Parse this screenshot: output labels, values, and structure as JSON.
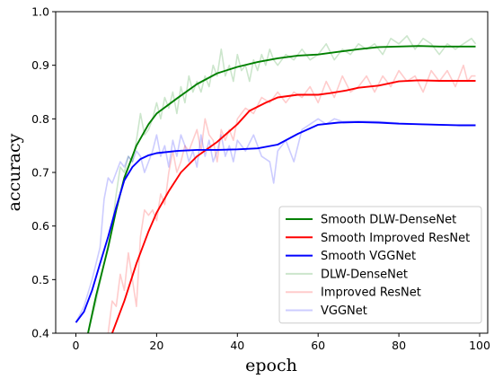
{
  "chart_data": {
    "type": "line",
    "xlabel": "epoch",
    "ylabel": "accuracy",
    "xlim": [
      -5,
      102
    ],
    "ylim": [
      0.4,
      1.0
    ],
    "x_ticks": [
      0,
      20,
      40,
      60,
      80,
      100
    ],
    "y_ticks": [
      0.4,
      0.5,
      0.6,
      0.7,
      0.8,
      0.9,
      1.0
    ],
    "grid": false,
    "legend_position": "bottom-right",
    "series": [
      {
        "name": "Smooth DLW-DenseNet",
        "color": "#008000",
        "alpha": 1,
        "points": [
          [
            3,
            0.4
          ],
          [
            5,
            0.47
          ],
          [
            8,
            0.56
          ],
          [
            10,
            0.63
          ],
          [
            12,
            0.69
          ],
          [
            15,
            0.75
          ],
          [
            18,
            0.79
          ],
          [
            20,
            0.81
          ],
          [
            25,
            0.838
          ],
          [
            30,
            0.865
          ],
          [
            35,
            0.885
          ],
          [
            40,
            0.897
          ],
          [
            45,
            0.906
          ],
          [
            50,
            0.913
          ],
          [
            55,
            0.918
          ],
          [
            60,
            0.92
          ],
          [
            65,
            0.925
          ],
          [
            70,
            0.93
          ],
          [
            75,
            0.934
          ],
          [
            80,
            0.935
          ],
          [
            85,
            0.936
          ],
          [
            90,
            0.935
          ],
          [
            95,
            0.935
          ],
          [
            99,
            0.935
          ]
        ]
      },
      {
        "name": "Smooth Improved ResNet",
        "color": "#ff0000",
        "alpha": 1,
        "points": [
          [
            9,
            0.4
          ],
          [
            12,
            0.46
          ],
          [
            15,
            0.53
          ],
          [
            18,
            0.59
          ],
          [
            20,
            0.625
          ],
          [
            23,
            0.665
          ],
          [
            26,
            0.7
          ],
          [
            30,
            0.73
          ],
          [
            35,
            0.757
          ],
          [
            40,
            0.79
          ],
          [
            43,
            0.815
          ],
          [
            47,
            0.83
          ],
          [
            50,
            0.84
          ],
          [
            55,
            0.845
          ],
          [
            60,
            0.845
          ],
          [
            63,
            0.848
          ],
          [
            67,
            0.853
          ],
          [
            70,
            0.858
          ],
          [
            75,
            0.862
          ],
          [
            80,
            0.87
          ],
          [
            85,
            0.872
          ],
          [
            90,
            0.871
          ],
          [
            95,
            0.871
          ],
          [
            99,
            0.871
          ]
        ]
      },
      {
        "name": "Smooth VGGNet",
        "color": "#0000ff",
        "alpha": 1,
        "points": [
          [
            0,
            0.42
          ],
          [
            2,
            0.44
          ],
          [
            4,
            0.48
          ],
          [
            6,
            0.53
          ],
          [
            8,
            0.58
          ],
          [
            10,
            0.635
          ],
          [
            12,
            0.685
          ],
          [
            14,
            0.71
          ],
          [
            16,
            0.725
          ],
          [
            18,
            0.732
          ],
          [
            20,
            0.736
          ],
          [
            25,
            0.74
          ],
          [
            30,
            0.742
          ],
          [
            35,
            0.742
          ],
          [
            40,
            0.743
          ],
          [
            45,
            0.745
          ],
          [
            50,
            0.752
          ],
          [
            55,
            0.772
          ],
          [
            60,
            0.789
          ],
          [
            65,
            0.793
          ],
          [
            70,
            0.794
          ],
          [
            75,
            0.793
          ],
          [
            80,
            0.791
          ],
          [
            85,
            0.79
          ],
          [
            90,
            0.789
          ],
          [
            95,
            0.788
          ],
          [
            99,
            0.788
          ]
        ]
      },
      {
        "name": "DLW-DenseNet",
        "color": "#008000",
        "alpha": 0.2,
        "points": [
          [
            3,
            0.4
          ],
          [
            5,
            0.46
          ],
          [
            7,
            0.53
          ],
          [
            9,
            0.6
          ],
          [
            10,
            0.66
          ],
          [
            11,
            0.71
          ],
          [
            12,
            0.7
          ],
          [
            13,
            0.73
          ],
          [
            14,
            0.72
          ],
          [
            15,
            0.76
          ],
          [
            16,
            0.81
          ],
          [
            17,
            0.77
          ],
          [
            18,
            0.78
          ],
          [
            19,
            0.8
          ],
          [
            20,
            0.83
          ],
          [
            21,
            0.8
          ],
          [
            22,
            0.84
          ],
          [
            23,
            0.82
          ],
          [
            24,
            0.85
          ],
          [
            25,
            0.81
          ],
          [
            26,
            0.86
          ],
          [
            27,
            0.83
          ],
          [
            28,
            0.88
          ],
          [
            29,
            0.85
          ],
          [
            30,
            0.87
          ],
          [
            31,
            0.85
          ],
          [
            32,
            0.88
          ],
          [
            33,
            0.86
          ],
          [
            34,
            0.9
          ],
          [
            35,
            0.88
          ],
          [
            36,
            0.93
          ],
          [
            37,
            0.88
          ],
          [
            38,
            0.9
          ],
          [
            39,
            0.87
          ],
          [
            40,
            0.92
          ],
          [
            41,
            0.89
          ],
          [
            42,
            0.9
          ],
          [
            43,
            0.87
          ],
          [
            44,
            0.91
          ],
          [
            45,
            0.89
          ],
          [
            46,
            0.92
          ],
          [
            47,
            0.9
          ],
          [
            48,
            0.93
          ],
          [
            49,
            0.91
          ],
          [
            50,
            0.9
          ],
          [
            52,
            0.92
          ],
          [
            54,
            0.91
          ],
          [
            56,
            0.93
          ],
          [
            58,
            0.91
          ],
          [
            60,
            0.92
          ],
          [
            62,
            0.94
          ],
          [
            64,
            0.91
          ],
          [
            66,
            0.93
          ],
          [
            68,
            0.92
          ],
          [
            70,
            0.94
          ],
          [
            72,
            0.93
          ],
          [
            74,
            0.94
          ],
          [
            76,
            0.92
          ],
          [
            78,
            0.95
          ],
          [
            80,
            0.94
          ],
          [
            82,
            0.955
          ],
          [
            84,
            0.93
          ],
          [
            86,
            0.95
          ],
          [
            88,
            0.94
          ],
          [
            90,
            0.92
          ],
          [
            92,
            0.94
          ],
          [
            94,
            0.93
          ],
          [
            96,
            0.94
          ],
          [
            98,
            0.95
          ],
          [
            99,
            0.94
          ]
        ]
      },
      {
        "name": "Improved ResNet",
        "color": "#ff0000",
        "alpha": 0.2,
        "points": [
          [
            8,
            0.4
          ],
          [
            9,
            0.46
          ],
          [
            10,
            0.45
          ],
          [
            11,
            0.51
          ],
          [
            12,
            0.48
          ],
          [
            13,
            0.55
          ],
          [
            14,
            0.5
          ],
          [
            15,
            0.45
          ],
          [
            16,
            0.58
          ],
          [
            17,
            0.63
          ],
          [
            18,
            0.62
          ],
          [
            19,
            0.63
          ],
          [
            20,
            0.61
          ],
          [
            21,
            0.66
          ],
          [
            22,
            0.64
          ],
          [
            23,
            0.7
          ],
          [
            24,
            0.74
          ],
          [
            25,
            0.7
          ],
          [
            26,
            0.72
          ],
          [
            27,
            0.75
          ],
          [
            28,
            0.74
          ],
          [
            29,
            0.76
          ],
          [
            30,
            0.78
          ],
          [
            31,
            0.74
          ],
          [
            32,
            0.8
          ],
          [
            33,
            0.77
          ],
          [
            34,
            0.76
          ],
          [
            35,
            0.72
          ],
          [
            36,
            0.78
          ],
          [
            37,
            0.76
          ],
          [
            38,
            0.78
          ],
          [
            39,
            0.76
          ],
          [
            40,
            0.8
          ],
          [
            42,
            0.82
          ],
          [
            44,
            0.81
          ],
          [
            46,
            0.84
          ],
          [
            48,
            0.83
          ],
          [
            50,
            0.85
          ],
          [
            52,
            0.83
          ],
          [
            54,
            0.85
          ],
          [
            56,
            0.84
          ],
          [
            58,
            0.86
          ],
          [
            60,
            0.83
          ],
          [
            62,
            0.87
          ],
          [
            64,
            0.84
          ],
          [
            66,
            0.88
          ],
          [
            68,
            0.85
          ],
          [
            70,
            0.86
          ],
          [
            72,
            0.88
          ],
          [
            74,
            0.85
          ],
          [
            76,
            0.88
          ],
          [
            78,
            0.86
          ],
          [
            80,
            0.89
          ],
          [
            82,
            0.87
          ],
          [
            84,
            0.88
          ],
          [
            86,
            0.85
          ],
          [
            88,
            0.89
          ],
          [
            90,
            0.87
          ],
          [
            92,
            0.89
          ],
          [
            94,
            0.86
          ],
          [
            96,
            0.9
          ],
          [
            97,
            0.87
          ],
          [
            98,
            0.88
          ],
          [
            99,
            0.88
          ]
        ]
      },
      {
        "name": "VGGNet",
        "color": "#0000ff",
        "alpha": 0.2,
        "points": [
          [
            0,
            0.42
          ],
          [
            2,
            0.45
          ],
          [
            4,
            0.5
          ],
          [
            6,
            0.56
          ],
          [
            7,
            0.65
          ],
          [
            8,
            0.69
          ],
          [
            9,
            0.68
          ],
          [
            10,
            0.7
          ],
          [
            11,
            0.72
          ],
          [
            12,
            0.71
          ],
          [
            13,
            0.73
          ],
          [
            14,
            0.72
          ],
          [
            15,
            0.74
          ],
          [
            16,
            0.73
          ],
          [
            17,
            0.7
          ],
          [
            18,
            0.72
          ],
          [
            19,
            0.74
          ],
          [
            20,
            0.77
          ],
          [
            21,
            0.73
          ],
          [
            22,
            0.75
          ],
          [
            23,
            0.71
          ],
          [
            24,
            0.76
          ],
          [
            25,
            0.73
          ],
          [
            26,
            0.77
          ],
          [
            27,
            0.75
          ],
          [
            28,
            0.72
          ],
          [
            29,
            0.74
          ],
          [
            30,
            0.71
          ],
          [
            31,
            0.77
          ],
          [
            32,
            0.73
          ],
          [
            33,
            0.76
          ],
          [
            34,
            0.72
          ],
          [
            35,
            0.74
          ],
          [
            36,
            0.77
          ],
          [
            37,
            0.73
          ],
          [
            38,
            0.75
          ],
          [
            39,
            0.72
          ],
          [
            40,
            0.76
          ],
          [
            42,
            0.74
          ],
          [
            44,
            0.77
          ],
          [
            46,
            0.73
          ],
          [
            48,
            0.72
          ],
          [
            49,
            0.68
          ],
          [
            50,
            0.74
          ],
          [
            52,
            0.76
          ],
          [
            54,
            0.72
          ],
          [
            56,
            0.78
          ],
          [
            58,
            0.79
          ],
          [
            60,
            0.8
          ],
          [
            62,
            0.79
          ],
          [
            64,
            0.8
          ],
          [
            66,
            0.795
          ],
          [
            70,
            0.796
          ],
          [
            75,
            0.795
          ],
          [
            80,
            0.792
          ],
          [
            85,
            0.79
          ],
          [
            90,
            0.789
          ],
          [
            95,
            0.788
          ],
          [
            99,
            0.788
          ]
        ]
      }
    ]
  }
}
